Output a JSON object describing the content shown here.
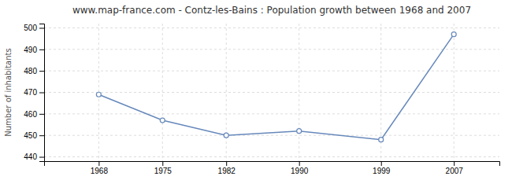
{
  "chart_data": {
    "type": "line",
    "title": "www.map-france.com - Contz-les-Bains : Population growth between 1968 and 2007",
    "ylabel": "Number of inhabitants",
    "x": [
      1968,
      1975,
      1982,
      1990,
      1999,
      2007
    ],
    "values": [
      469,
      457,
      450,
      452,
      448,
      497
    ],
    "color": "#6688bb",
    "marker": "circle",
    "xlim": [
      1962,
      2012
    ],
    "xticks": [
      1968,
      1975,
      1982,
      1990,
      1999,
      2007
    ],
    "ylim": [
      438,
      502
    ],
    "yticks": [
      440,
      450,
      460,
      470,
      480,
      490,
      500
    ],
    "grid": true
  }
}
